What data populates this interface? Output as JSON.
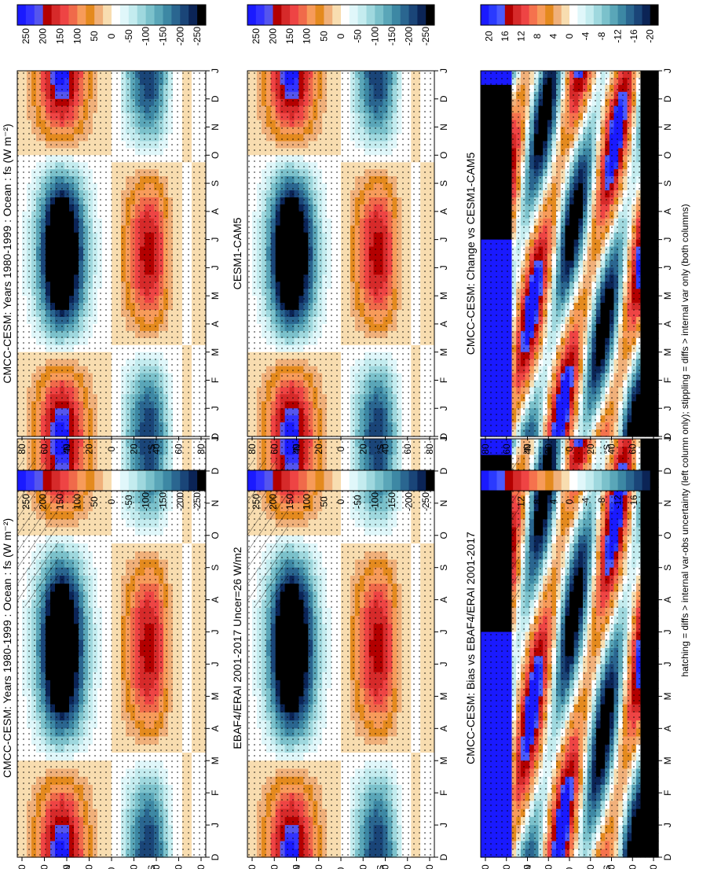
{
  "footnote": "hatching = diffs > internal var-obs uncertainty (left column only); stippling = diffs > internal var only (both columns)",
  "months": [
    "D",
    "J",
    "F",
    "M",
    "A",
    "M",
    "J",
    "J",
    "A",
    "S",
    "O",
    "N",
    "D",
    "J"
  ],
  "lat_ticks": [
    "80",
    "60",
    "40",
    "20",
    "0",
    "20",
    "40",
    "60",
    "80"
  ],
  "lat_hemis": [
    "°N",
    "°S"
  ],
  "colorbar_main_labels": [
    "250",
    "200",
    "150",
    "100",
    "50",
    "0",
    "-50",
    "-100",
    "-150",
    "-200",
    "-250"
  ],
  "colorbar_diff_labels": [
    "20",
    "16",
    "12",
    "8",
    "4",
    "0",
    "-4",
    "-8",
    "-12",
    "-16",
    "-20"
  ],
  "colors": {
    "main_palette": [
      "#1a1aff",
      "#3333ff",
      "#5555ee",
      "#b30000",
      "#d62a2a",
      "#ee4444",
      "#f06a4a",
      "#f79b5a",
      "#e48a1e",
      "#f0b07a",
      "#f8ddb0",
      "#ffffff",
      "#e0f7fa",
      "#c4ecef",
      "#9fd8de",
      "#7bc1cb",
      "#5aa6b8",
      "#3d88a4",
      "#2a6690",
      "#1a4578",
      "#0b2456",
      "#000000"
    ],
    "diff_palette": [
      "#1a1aff",
      "#2a3aff",
      "#4a5aff",
      "#b30000",
      "#d62a2a",
      "#ee4444",
      "#f5724d",
      "#f79b5a",
      "#e48a1e",
      "#f0b07a",
      "#f8ddb0",
      "#ffffff",
      "#e0f7fa",
      "#c4ecef",
      "#9fd8de",
      "#7bc1cb",
      "#5aa6b8",
      "#3d88a4",
      "#2a6690",
      "#1a4578",
      "#0b2456",
      "#000000"
    ]
  },
  "panels": [
    {
      "title": "CMCC-CESM: Years 1980-1999 : Ocean : fs (W m⁻²)",
      "kind": "abs",
      "hatch": true
    },
    {
      "title": "CMCC-CESM: Years 1980-1999 : Ocean : fs (W m⁻²)",
      "kind": "abs",
      "hatch": false
    },
    {
      "title": "EBAF4/ERAI 2001-2017 Uncer=26 W/m2",
      "kind": "abs",
      "hatch": true
    },
    {
      "title": "CESM1-CAM5",
      "kind": "abs",
      "hatch": false
    },
    {
      "title": "CMCC-CESM: Bias vs EBAF4/ERAI 2001-2017",
      "kind": "diff",
      "hatch": true
    },
    {
      "title": "CMCC-CESM: Change vs CESM1-CAM5",
      "kind": "diff",
      "hatch": false
    }
  ],
  "chart_data": [
    {
      "type": "heatmap",
      "title": "CMCC-CESM: Years 1980-1999 : Ocean : fs (W m⁻²)",
      "x_ticks": [
        "D",
        "J",
        "F",
        "M",
        "A",
        "M",
        "J",
        "J",
        "A",
        "S",
        "O",
        "N",
        "D",
        "J"
      ],
      "y_ticks": [
        "80",
        "60",
        "40",
        "20",
        "0",
        "20",
        "40",
        "60",
        "80"
      ],
      "colorbar": [
        "250",
        "200",
        "150",
        "100",
        "50",
        "0",
        "-50",
        "-100",
        "-150",
        "-200",
        "-250"
      ]
    },
    {
      "type": "heatmap",
      "title": "CMCC-CESM: Years 1980-1999 : Ocean : fs (W m⁻²)",
      "x_ticks": [
        "D",
        "J",
        "F",
        "M",
        "A",
        "M",
        "J",
        "J",
        "A",
        "S",
        "O",
        "N",
        "D",
        "J"
      ],
      "y_ticks": [
        "80",
        "60",
        "40",
        "20",
        "0",
        "20",
        "40",
        "60",
        "80"
      ],
      "colorbar": [
        "250",
        "200",
        "150",
        "100",
        "50",
        "0",
        "-50",
        "-100",
        "-150",
        "-200",
        "-250"
      ]
    },
    {
      "type": "heatmap",
      "title": "EBAF4/ERAI 2001-2017 Uncer=26 W/m2",
      "x_ticks": [
        "D",
        "J",
        "F",
        "M",
        "A",
        "M",
        "J",
        "J",
        "A",
        "S",
        "O",
        "N",
        "D",
        "J"
      ],
      "y_ticks": [
        "80",
        "60",
        "40",
        "20",
        "0",
        "20",
        "40",
        "60",
        "80"
      ],
      "colorbar": [
        "250",
        "200",
        "150",
        "100",
        "50",
        "0",
        "-50",
        "-100",
        "-150",
        "-200",
        "-250"
      ]
    },
    {
      "type": "heatmap",
      "title": "CESM1-CAM5",
      "x_ticks": [
        "D",
        "J",
        "F",
        "M",
        "A",
        "M",
        "J",
        "J",
        "A",
        "S",
        "O",
        "N",
        "D",
        "J"
      ],
      "y_ticks": [
        "80",
        "60",
        "40",
        "20",
        "0",
        "20",
        "40",
        "60",
        "80"
      ],
      "colorbar": [
        "250",
        "200",
        "150",
        "100",
        "50",
        "0",
        "-50",
        "-100",
        "-150",
        "-200",
        "-250"
      ]
    },
    {
      "type": "heatmap",
      "title": "CMCC-CESM: Bias vs EBAF4/ERAI 2001-2017",
      "x_ticks": [
        "D",
        "J",
        "F",
        "M",
        "A",
        "M",
        "J",
        "J",
        "A",
        "S",
        "O",
        "N",
        "D",
        "J"
      ],
      "y_ticks": [
        "80",
        "60",
        "40",
        "20",
        "0",
        "20",
        "40",
        "60",
        "80"
      ],
      "colorbar": [
        "20",
        "16",
        "12",
        "8",
        "4",
        "0",
        "-4",
        "-8",
        "-12",
        "-16",
        "-20"
      ]
    },
    {
      "type": "heatmap",
      "title": "CMCC-CESM: Change vs CESM1-CAM5",
      "x_ticks": [
        "D",
        "J",
        "F",
        "M",
        "A",
        "M",
        "J",
        "J",
        "A",
        "S",
        "O",
        "N",
        "D",
        "J"
      ],
      "y_ticks": [
        "80",
        "60",
        "40",
        "20",
        "0",
        "20",
        "40",
        "60",
        "80"
      ],
      "colorbar": [
        "20",
        "16",
        "12",
        "8",
        "4",
        "0",
        "-4",
        "-8",
        "-12",
        "-16",
        "-20"
      ]
    }
  ]
}
